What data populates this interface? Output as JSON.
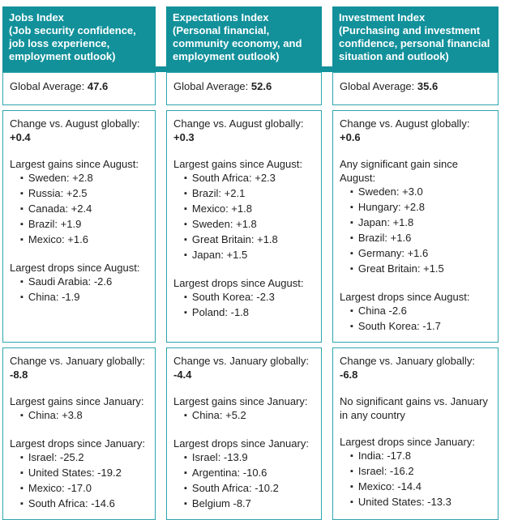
{
  "colors": {
    "teal": "#12919B",
    "border": "#2FA5AD",
    "text": "#222222"
  },
  "columns": [
    {
      "header": {
        "title": "Jobs Index",
        "subtitle": "(Job security confidence, job loss experience, employment outlook)"
      },
      "global_average": {
        "label": "Global Average:",
        "value": "47.6"
      },
      "august": {
        "change_label": "Change vs. August globally:",
        "change_value": "+0.4",
        "gains_label": "Largest gains since August:",
        "gains": [
          "Sweden: +2.8",
          "Russia: +2.5",
          "Canada: +2.4",
          "Brazil: +1.9",
          "Mexico: +1.6"
        ],
        "drops_label": "Largest drops since August:",
        "drops": [
          "Saudi Arabia: -2.6",
          "China: -1.9"
        ]
      },
      "january": {
        "change_label": "Change vs. January globally:",
        "change_value": "-8.8",
        "gains_label": "Largest gains since January:",
        "gains": [
          "China: +3.8"
        ],
        "drops_label": "Largest drops since January:",
        "drops": [
          "Israel: -25.2",
          "United States: -19.2",
          "Mexico: -17.0",
          "South Africa: -14.6"
        ]
      }
    },
    {
      "header": {
        "title": "Expectations Index",
        "subtitle": "(Personal financial, community economy, and employment outlook)"
      },
      "global_average": {
        "label": "Global Average:",
        "value": "52.6"
      },
      "august": {
        "change_label": "Change vs. August globally:",
        "change_value": "+0.3",
        "gains_label": "Largest gains since August:",
        "gains": [
          "South Africa: +2.3",
          "Brazil: +2.1",
          "Mexico: +1.8",
          "Sweden: +1.8",
          "Great Britain: +1.8",
          "Japan: +1.5"
        ],
        "drops_label": "Largest drops since August:",
        "drops": [
          "South Korea: -2.3",
          "Poland: -1.8"
        ]
      },
      "january": {
        "change_label": "Change vs. January globally:",
        "change_value": "-4.4",
        "gains_label": "Largest gains since January:",
        "gains": [
          "China: +5.2"
        ],
        "drops_label": "Largest drops since January:",
        "drops": [
          "Israel: -13.9",
          "Argentina: -10.6",
          "South Africa: -10.2",
          "Belgium -8.7"
        ]
      }
    },
    {
      "header": {
        "title": "Investment Index",
        "subtitle": "(Purchasing and investment confidence, personal financial situation and outlook)"
      },
      "global_average": {
        "label": "Global Average:",
        "value": "35.6"
      },
      "august": {
        "change_label": "Change vs. August globally:",
        "change_value": "+0.6",
        "gains_label": "Any significant gain since August:",
        "gains": [
          "Sweden: +3.0",
          "Hungary: +2.8",
          "Japan: +1.8",
          "Brazil: +1.6",
          "Germany: +1.6",
          "Great Britain: +1.5"
        ],
        "drops_label": "Largest drops since August:",
        "drops": [
          "China -2.6",
          "South Korea: -1.7"
        ]
      },
      "january": {
        "change_label": "Change vs. January globally:",
        "change_value": "-6.8",
        "gains_label": "No significant gains vs. January in any country",
        "gains": [],
        "drops_label": "Largest drops since January:",
        "drops": [
          "India: -17.8",
          "Israel: -16.2",
          "Mexico: -14.4",
          "United States: -13.3"
        ]
      }
    }
  ]
}
